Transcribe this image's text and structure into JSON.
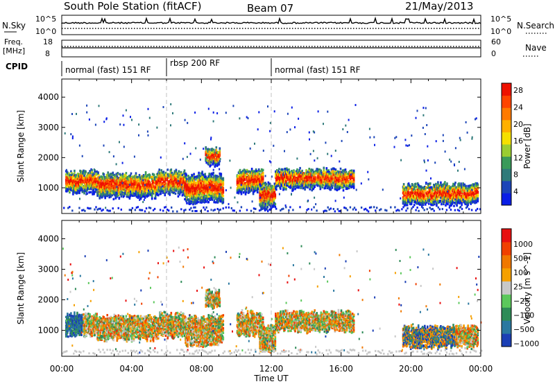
{
  "header": {
    "station": "South Pole Station (fitACF)",
    "beam": "Beam 07",
    "date": "21/May/2013"
  },
  "top_panels": {
    "nsky_label": "N.Sky",
    "nsearch_label": "N.Search",
    "nsky_ticks": [
      "10^5",
      "10^0"
    ],
    "nsearch_ticks": [
      "10^5",
      "10^0"
    ],
    "freq_label": "Freq.",
    "freq_unit": "[MHz]",
    "freq_ticks": [
      "18",
      "8"
    ],
    "nave_label": "Nave",
    "nave_ticks": [
      "60",
      "0"
    ],
    "cpid_label": "CPID",
    "cpid_segments": [
      "normal (fast) 151 RF",
      "rbsp 200 RF",
      "normal (fast) 151 RF"
    ]
  },
  "chart_data": [
    {
      "type": "heatmap",
      "ylabel": "Slant Range [km]",
      "y_ticks": [
        1000,
        2000,
        3000,
        4000
      ],
      "ylim": [
        150,
        4600
      ],
      "x_ticks": [
        "00:00",
        "04:00",
        "08:00",
        "12:00",
        "16:00",
        "20:00",
        "00:00"
      ],
      "xlim_hours": [
        0,
        24
      ],
      "colorbar": {
        "label": "Power [dB]",
        "ticks": [
          "4",
          "8",
          "12",
          "16",
          "20",
          "24",
          "28"
        ],
        "colors": [
          "#0a1ee6",
          "#1c45b8",
          "#2f7a7a",
          "#3a9a5a",
          "#9acd32",
          "#f5e000",
          "#ffb000",
          "#ff7a00",
          "#ff4400",
          "#ee1100"
        ]
      }
    },
    {
      "type": "heatmap",
      "ylabel": "Slant Range [km]",
      "xlabel": "Time UT",
      "y_ticks": [
        1000,
        2000,
        3000,
        4000
      ],
      "ylim": [
        150,
        4600
      ],
      "x_ticks": [
        "00:00",
        "04:00",
        "08:00",
        "12:00",
        "16:00",
        "20:00",
        "00:00"
      ],
      "xlim_hours": [
        0,
        24
      ],
      "colorbar": {
        "label": "Velocity [m s^-1]",
        "ticks": [
          "1000",
          "500",
          "100",
          "25",
          "−25",
          "−100",
          "−500",
          "−1000"
        ],
        "colors": [
          "#1b3fb5",
          "#2a78a0",
          "#2e8b57",
          "#5cc85c",
          "#c8c8c8",
          "#f5a000",
          "#f07800",
          "#f04000",
          "#e81010"
        ]
      }
    }
  ]
}
